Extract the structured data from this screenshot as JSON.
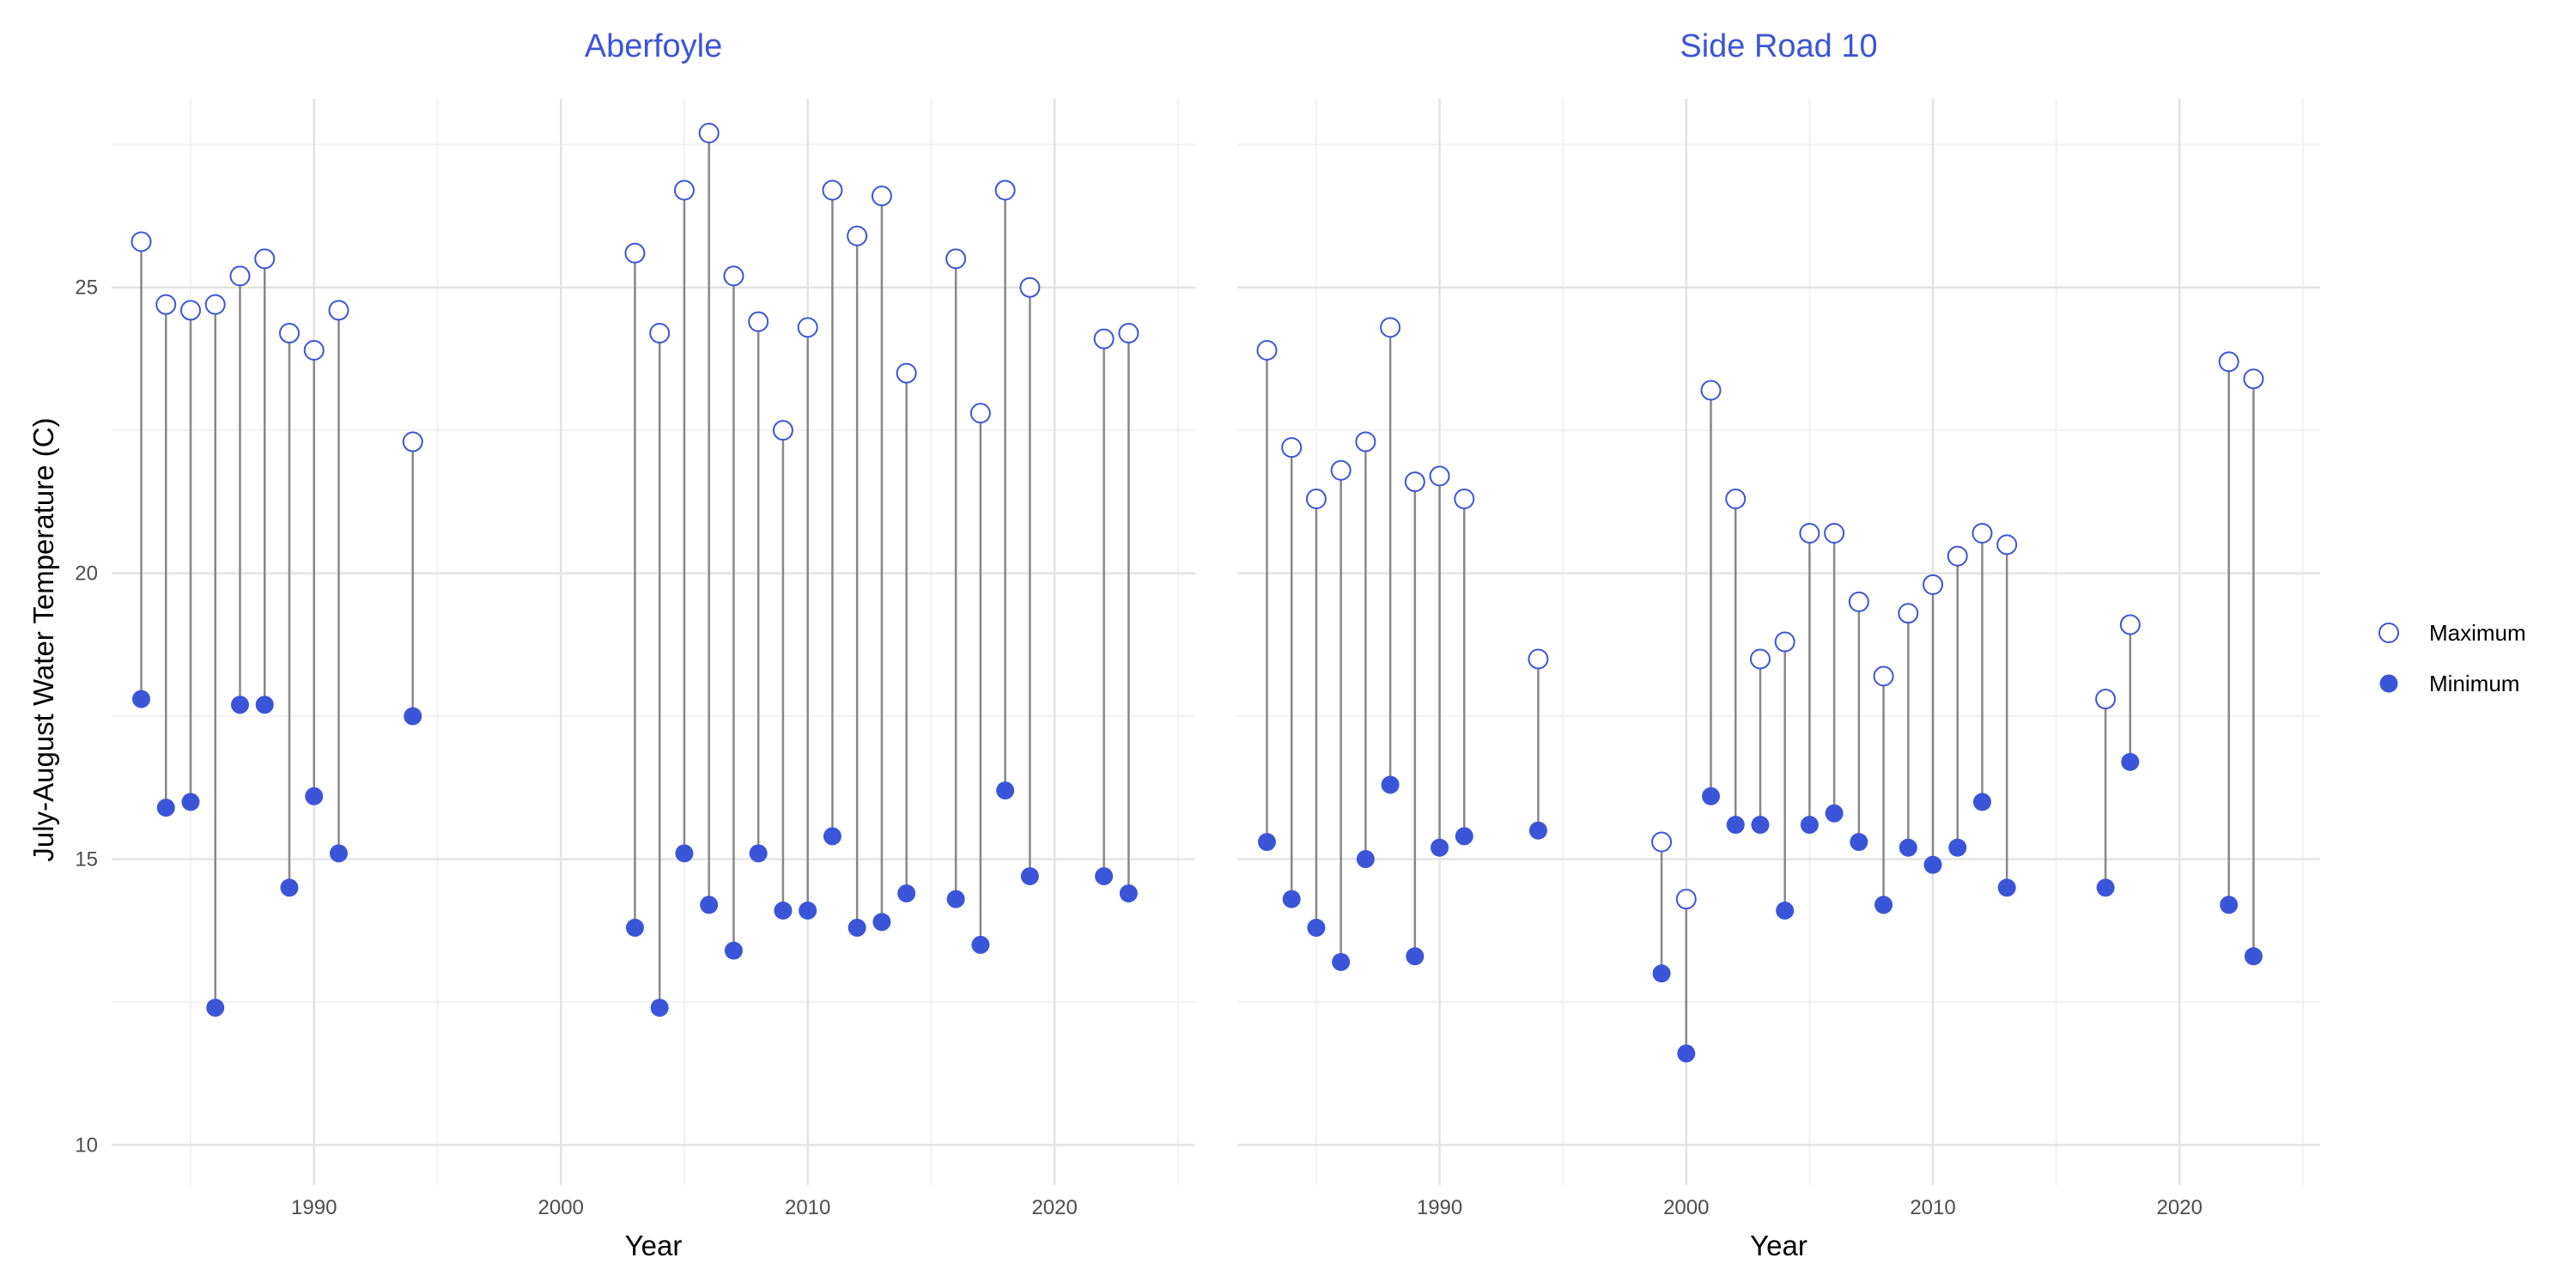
{
  "chart_data": {
    "type": "scatter",
    "ylabel": "July-August Water Temperature (C)",
    "xlabel": "Year",
    "ylim": [
      9.3,
      28.3
    ],
    "y_ticks": [
      10,
      15,
      20,
      25
    ],
    "y_tick_labels": [
      "10",
      "15",
      "20",
      "25"
    ],
    "xlim": [
      1981.8,
      2025.7
    ],
    "x_ticks": [
      1990,
      2000,
      2010,
      2020
    ],
    "x_tick_labels": [
      "1990",
      "2000",
      "2010",
      "2020"
    ],
    "grid": true,
    "legend_position": "right",
    "series_names": [
      "Maximum",
      "Minimum"
    ],
    "colors": {
      "accent": "#3b55d9",
      "segment": "#888888",
      "grid_major": "#e3e3e3",
      "grid_minor": "#f2f2f2"
    },
    "panels": [
      {
        "title": "Aberfoyle",
        "points": [
          {
            "year": 1983,
            "max": 25.8,
            "min": 17.8
          },
          {
            "year": 1984,
            "max": 24.7,
            "min": 15.9
          },
          {
            "year": 1985,
            "max": 24.6,
            "min": 16.0
          },
          {
            "year": 1986,
            "max": 24.7,
            "min": 12.4
          },
          {
            "year": 1987,
            "max": 25.2,
            "min": 17.7
          },
          {
            "year": 1988,
            "max": 25.5,
            "min": 17.7
          },
          {
            "year": 1989,
            "max": 24.2,
            "min": 14.5
          },
          {
            "year": 1990,
            "max": 23.9,
            "min": 16.1
          },
          {
            "year": 1991,
            "max": 24.6,
            "min": 15.1
          },
          {
            "year": 1994,
            "max": 22.3,
            "min": 17.5
          },
          {
            "year": 2003,
            "max": 25.6,
            "min": 13.8
          },
          {
            "year": 2004,
            "max": 24.2,
            "min": 12.4
          },
          {
            "year": 2005,
            "max": 26.7,
            "min": 15.1
          },
          {
            "year": 2006,
            "max": 27.7,
            "min": 14.2
          },
          {
            "year": 2007,
            "max": 25.2,
            "min": 13.4
          },
          {
            "year": 2008,
            "max": 24.4,
            "min": 15.1
          },
          {
            "year": 2009,
            "max": 22.5,
            "min": 14.1
          },
          {
            "year": 2010,
            "max": 24.3,
            "min": 14.1
          },
          {
            "year": 2011,
            "max": 26.7,
            "min": 15.4
          },
          {
            "year": 2012,
            "max": 25.9,
            "min": 13.8
          },
          {
            "year": 2013,
            "max": 26.6,
            "min": 13.9
          },
          {
            "year": 2014,
            "max": 23.5,
            "min": 14.4
          },
          {
            "year": 2016,
            "max": 25.5,
            "min": 14.3
          },
          {
            "year": 2017,
            "max": 22.8,
            "min": 13.5
          },
          {
            "year": 2018,
            "max": 26.7,
            "min": 16.2
          },
          {
            "year": 2019,
            "max": 25.0,
            "min": 14.7
          },
          {
            "year": 2022,
            "max": 24.1,
            "min": 14.7
          },
          {
            "year": 2023,
            "max": 24.2,
            "min": 14.4
          }
        ]
      },
      {
        "title": "Side Road 10",
        "points": [
          {
            "year": 1983,
            "max": 23.9,
            "min": 15.3
          },
          {
            "year": 1984,
            "max": 22.2,
            "min": 14.3
          },
          {
            "year": 1985,
            "max": 21.3,
            "min": 13.8
          },
          {
            "year": 1986,
            "max": 21.8,
            "min": 13.2
          },
          {
            "year": 1987,
            "max": 22.3,
            "min": 15.0
          },
          {
            "year": 1988,
            "max": 24.3,
            "min": 16.3
          },
          {
            "year": 1989,
            "max": 21.6,
            "min": 13.3
          },
          {
            "year": 1990,
            "max": 21.7,
            "min": 15.2
          },
          {
            "year": 1991,
            "max": 21.3,
            "min": 15.4
          },
          {
            "year": 1994,
            "max": 18.5,
            "min": 15.5
          },
          {
            "year": 1999,
            "max": 15.3,
            "min": 13.0
          },
          {
            "year": 2000,
            "max": 14.3,
            "min": 11.6
          },
          {
            "year": 2001,
            "max": 23.2,
            "min": 16.1
          },
          {
            "year": 2002,
            "max": 21.3,
            "min": 15.6
          },
          {
            "year": 2003,
            "max": 18.5,
            "min": 15.6
          },
          {
            "year": 2004,
            "max": 18.8,
            "min": 14.1
          },
          {
            "year": 2005,
            "max": 20.7,
            "min": 15.6
          },
          {
            "year": 2006,
            "max": 20.7,
            "min": 15.8
          },
          {
            "year": 2007,
            "max": 19.5,
            "min": 15.3
          },
          {
            "year": 2008,
            "max": 18.2,
            "min": 14.2
          },
          {
            "year": 2009,
            "max": 19.3,
            "min": 15.2
          },
          {
            "year": 2010,
            "max": 19.8,
            "min": 14.9
          },
          {
            "year": 2011,
            "max": 20.3,
            "min": 15.2
          },
          {
            "year": 2012,
            "max": 20.7,
            "min": 16.0
          },
          {
            "year": 2013,
            "max": 20.5,
            "min": 14.5
          },
          {
            "year": 2017,
            "max": 17.8,
            "min": 14.5
          },
          {
            "year": 2018,
            "max": 19.1,
            "min": 16.7
          },
          {
            "year": 2022,
            "max": 23.7,
            "min": 14.2
          },
          {
            "year": 2023,
            "max": 23.4,
            "min": 13.3
          }
        ]
      }
    ]
  }
}
